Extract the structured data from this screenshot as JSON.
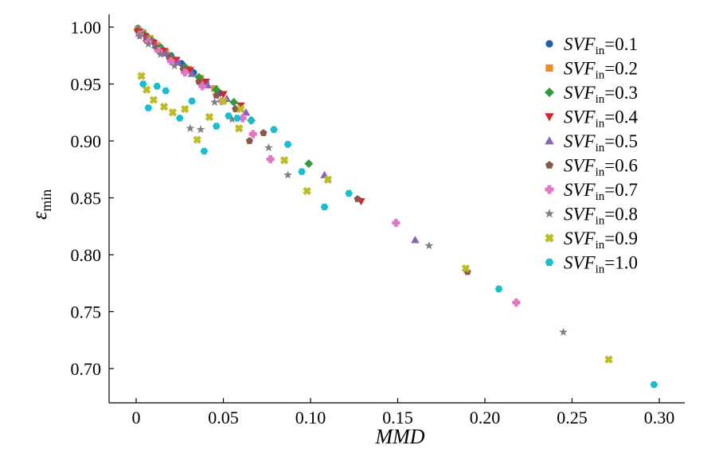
{
  "chart_data": {
    "type": "scatter",
    "xlabel": "MMD",
    "ylabel": {
      "main": "ε",
      "sub": "min"
    },
    "xlim": [
      -0.015,
      0.3
    ],
    "ylim": [
      0.68,
      1.0
    ],
    "xticks": [
      0,
      0.05,
      0.1,
      0.15,
      0.2,
      0.25,
      0.3
    ],
    "xtick_labels": [
      "0",
      "0.05",
      "0.10",
      "0.15",
      "0.20",
      "0.25",
      "0.30"
    ],
    "yticks": [
      0.7,
      0.75,
      0.8,
      0.85,
      0.9,
      0.95,
      1.0
    ],
    "ytick_labels": [
      "0.70",
      "0.75",
      "0.80",
      "0.85",
      "0.90",
      "0.95",
      "1.00"
    ],
    "grid": false,
    "legend_position": "top-right",
    "series": [
      {
        "name": "SVFin=0.1",
        "label_main": "SVF",
        "label_sub": "in",
        "label_value": "=0.1",
        "color": "#1f5fa8",
        "marker": "circle",
        "points": [
          [
            0.001,
            0.999
          ],
          [
            0.003,
            0.996
          ],
          [
            0.006,
            0.992
          ],
          [
            0.01,
            0.987
          ],
          [
            0.014,
            0.982
          ],
          [
            0.02,
            0.975
          ],
          [
            0.026,
            0.968
          ],
          [
            0.033,
            0.96
          ],
          [
            0.04,
            0.951
          ],
          [
            0.048,
            0.942
          ]
        ]
      },
      {
        "name": "SVFin=0.2",
        "label_main": "SVF",
        "label_sub": "in",
        "label_value": "=0.2",
        "color": "#f08a24",
        "marker": "square",
        "points": [
          [
            0.001,
            0.998
          ],
          [
            0.004,
            0.995
          ],
          [
            0.008,
            0.99
          ],
          [
            0.012,
            0.984
          ],
          [
            0.017,
            0.978
          ],
          [
            0.023,
            0.971
          ],
          [
            0.03,
            0.963
          ],
          [
            0.037,
            0.955
          ],
          [
            0.045,
            0.946
          ]
        ]
      },
      {
        "name": "SVFin=0.3",
        "label_main": "SVF",
        "label_sub": "in",
        "label_value": "=0.3",
        "color": "#2e9c3f",
        "marker": "diamond",
        "points": [
          [
            0.001,
            0.997
          ],
          [
            0.005,
            0.993
          ],
          [
            0.009,
            0.988
          ],
          [
            0.014,
            0.982
          ],
          [
            0.02,
            0.974
          ],
          [
            0.028,
            0.965
          ],
          [
            0.036,
            0.956
          ],
          [
            0.046,
            0.945
          ],
          [
            0.056,
            0.934
          ],
          [
            0.066,
            0.918
          ],
          [
            0.099,
            0.88
          ]
        ]
      },
      {
        "name": "SVFin=0.4",
        "label_main": "SVF",
        "label_sub": "in",
        "label_value": "=0.4",
        "color": "#d7262b",
        "marker": "triangle-down",
        "points": [
          [
            0.001,
            0.996
          ],
          [
            0.005,
            0.992
          ],
          [
            0.01,
            0.986
          ],
          [
            0.016,
            0.979
          ],
          [
            0.023,
            0.971
          ],
          [
            0.031,
            0.962
          ],
          [
            0.04,
            0.952
          ],
          [
            0.05,
            0.941
          ],
          [
            0.06,
            0.931
          ],
          [
            0.129,
            0.847
          ]
        ]
      },
      {
        "name": "SVFin=0.5",
        "label_main": "SVF",
        "label_sub": "in",
        "label_value": "=0.5",
        "color": "#8a63b8",
        "marker": "triangle-up",
        "points": [
          [
            0.002,
            0.995
          ],
          [
            0.006,
            0.99
          ],
          [
            0.011,
            0.984
          ],
          [
            0.017,
            0.977
          ],
          [
            0.024,
            0.969
          ],
          [
            0.032,
            0.959
          ],
          [
            0.041,
            0.949
          ],
          [
            0.052,
            0.937
          ],
          [
            0.063,
            0.925
          ],
          [
            0.108,
            0.87
          ],
          [
            0.16,
            0.813
          ]
        ]
      },
      {
        "name": "SVFin=0.6",
        "label_main": "SVF",
        "label_sub": "in",
        "label_value": "=0.6",
        "color": "#8c564b",
        "marker": "pentagon",
        "points": [
          [
            0.002,
            0.994
          ],
          [
            0.006,
            0.988
          ],
          [
            0.012,
            0.981
          ],
          [
            0.019,
            0.973
          ],
          [
            0.027,
            0.963
          ],
          [
            0.036,
            0.952
          ],
          [
            0.046,
            0.94
          ],
          [
            0.057,
            0.928
          ],
          [
            0.065,
            0.9
          ],
          [
            0.073,
            0.907
          ],
          [
            0.127,
            0.849
          ],
          [
            0.19,
            0.785
          ]
        ]
      },
      {
        "name": "SVFin=0.7",
        "label_main": "SVF",
        "label_sub": "in",
        "label_value": "=0.7",
        "color": "#e077c2",
        "marker": "plus",
        "points": [
          [
            0.002,
            0.993
          ],
          [
            0.007,
            0.987
          ],
          [
            0.013,
            0.979
          ],
          [
            0.02,
            0.97
          ],
          [
            0.028,
            0.96
          ],
          [
            0.038,
            0.948
          ],
          [
            0.049,
            0.935
          ],
          [
            0.061,
            0.92
          ],
          [
            0.067,
            0.906
          ],
          [
            0.077,
            0.884
          ],
          [
            0.149,
            0.828
          ],
          [
            0.218,
            0.758
          ]
        ]
      },
      {
        "name": "SVFin=0.8",
        "label_main": "SVF",
        "label_sub": "in",
        "label_value": "=0.8",
        "color": "#7f7f7f",
        "marker": "star",
        "points": [
          [
            0.002,
            0.992
          ],
          [
            0.007,
            0.985
          ],
          [
            0.014,
            0.976
          ],
          [
            0.022,
            0.966
          ],
          [
            0.031,
            0.911
          ],
          [
            0.037,
            0.91
          ],
          [
            0.045,
            0.934
          ],
          [
            0.055,
            0.919
          ],
          [
            0.076,
            0.894
          ],
          [
            0.087,
            0.87
          ],
          [
            0.168,
            0.808
          ],
          [
            0.245,
            0.732
          ]
        ]
      },
      {
        "name": "SVFin=0.9",
        "label_main": "SVF",
        "label_sub": "in",
        "label_value": "=0.9",
        "color": "#bcbd22",
        "marker": "x",
        "points": [
          [
            0.003,
            0.957
          ],
          [
            0.006,
            0.945
          ],
          [
            0.01,
            0.936
          ],
          [
            0.016,
            0.93
          ],
          [
            0.021,
            0.925
          ],
          [
            0.028,
            0.928
          ],
          [
            0.035,
            0.901
          ],
          [
            0.042,
            0.921
          ],
          [
            0.05,
            0.935
          ],
          [
            0.059,
            0.911
          ],
          [
            0.06,
            0.928
          ],
          [
            0.085,
            0.883
          ],
          [
            0.098,
            0.856
          ],
          [
            0.11,
            0.866
          ],
          [
            0.189,
            0.788
          ],
          [
            0.271,
            0.708
          ]
        ]
      },
      {
        "name": "SVFin=1.0",
        "label_main": "SVF",
        "label_sub": "in",
        "label_value": "=1.0",
        "color": "#17becf",
        "marker": "hexagon",
        "points": [
          [
            0.004,
            0.95
          ],
          [
            0.007,
            0.929
          ],
          [
            0.012,
            0.948
          ],
          [
            0.017,
            0.944
          ],
          [
            0.025,
            0.92
          ],
          [
            0.032,
            0.935
          ],
          [
            0.039,
            0.891
          ],
          [
            0.046,
            0.913
          ],
          [
            0.053,
            0.922
          ],
          [
            0.058,
            0.92
          ],
          [
            0.066,
            0.918
          ],
          [
            0.079,
            0.91
          ],
          [
            0.087,
            0.897
          ],
          [
            0.095,
            0.873
          ],
          [
            0.108,
            0.842
          ],
          [
            0.122,
            0.854
          ],
          [
            0.208,
            0.77
          ],
          [
            0.297,
            0.686
          ]
        ]
      }
    ]
  }
}
